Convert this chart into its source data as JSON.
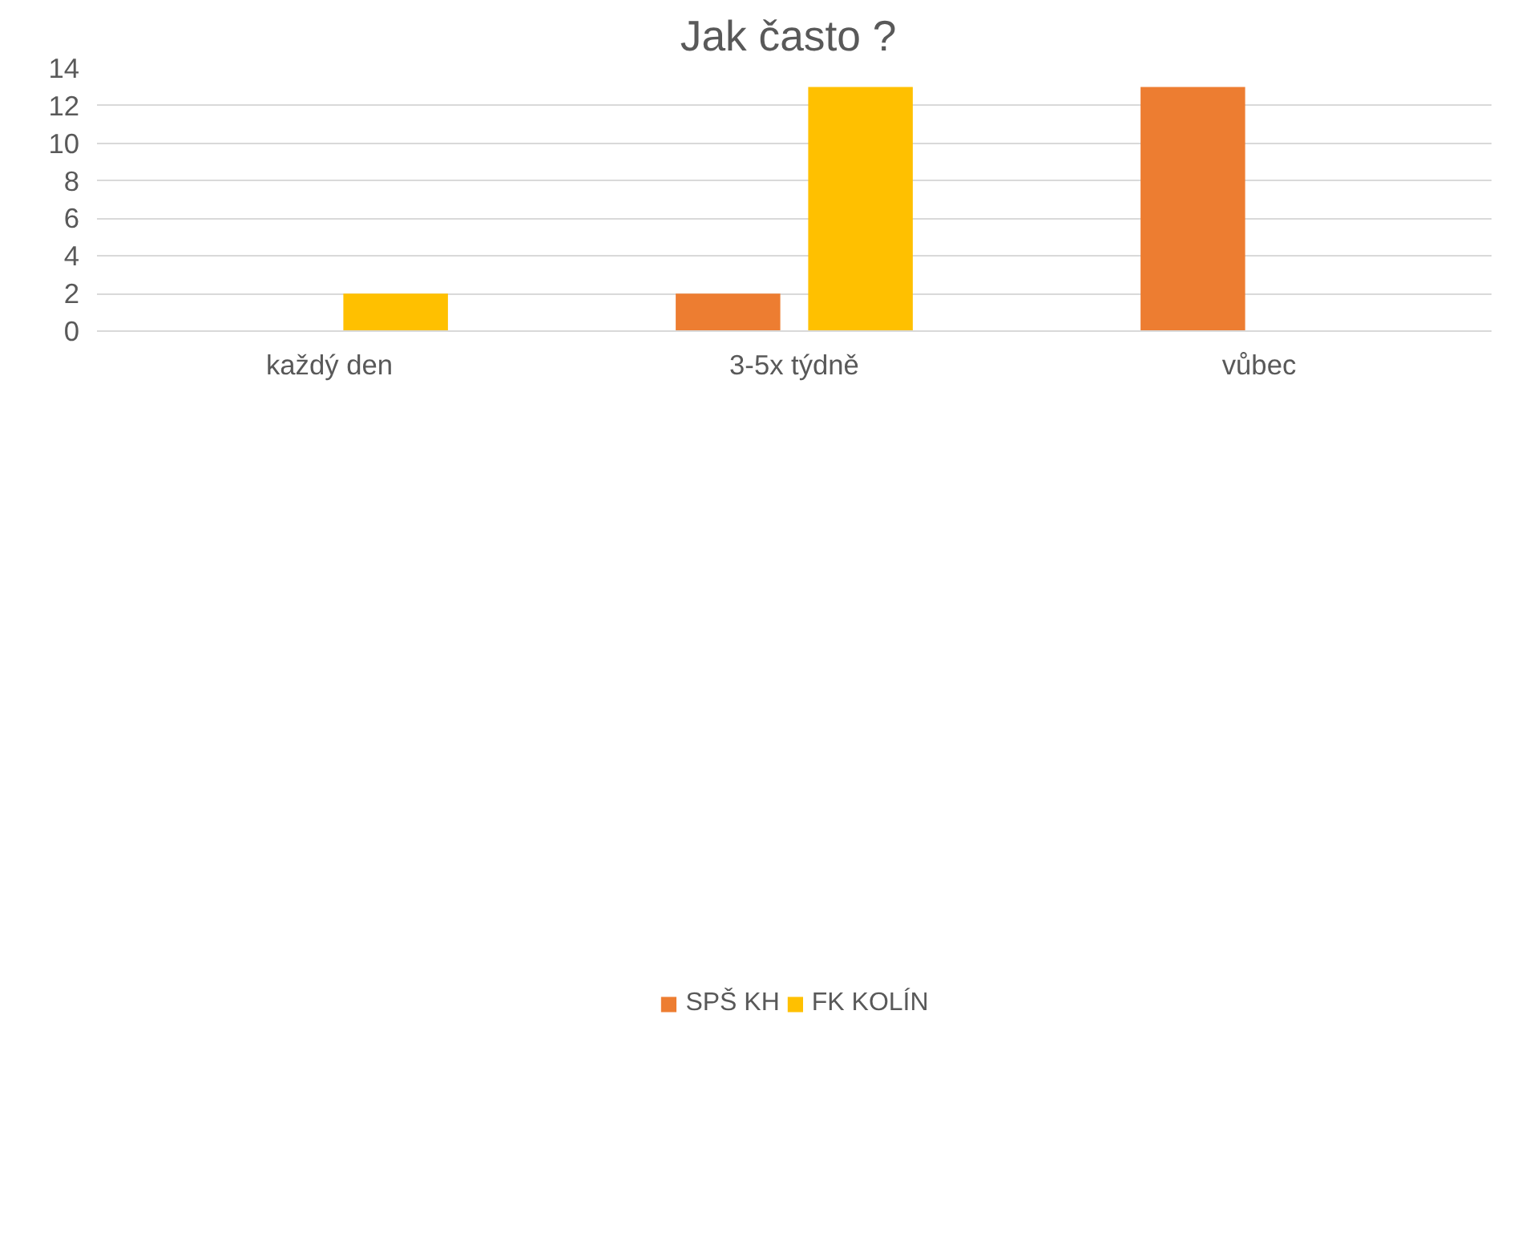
{
  "chart_data": {
    "type": "bar",
    "title": "Jak často  ?",
    "categories": [
      "každý den",
      "3-5x týdně",
      "vůbec"
    ],
    "series": [
      {
        "name": "SPŠ KH",
        "color": "#ed7d31",
        "values": [
          0,
          2,
          13
        ]
      },
      {
        "name": "FK KOLÍN",
        "color": "#ffc000",
        "values": [
          2,
          13,
          0
        ]
      }
    ],
    "ylim": [
      0,
      14
    ],
    "yticks": [
      0,
      2,
      4,
      6,
      8,
      10,
      12,
      14
    ],
    "grid": "y",
    "legend": "bottom"
  }
}
